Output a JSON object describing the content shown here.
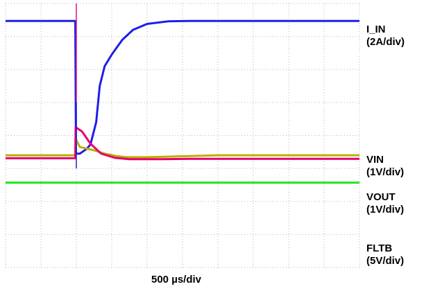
{
  "chart_data": {
    "type": "line",
    "x": {
      "unit": "µs",
      "label": "500 µs/div",
      "range": [
        0,
        5000
      ]
    },
    "grid": true,
    "series": [
      {
        "name": "I_IN",
        "scale": "(2A/div)",
        "color": "#1e1ee6",
        "points": [
          [
            0,
            3.47
          ],
          [
            985,
            3.47
          ],
          [
            995,
            -0.55
          ],
          [
            1050,
            -0.55
          ],
          [
            1150,
            -0.4
          ],
          [
            1200,
            -0.27
          ],
          [
            1280,
            0.4
          ],
          [
            1330,
            1.5
          ],
          [
            1400,
            2.1
          ],
          [
            1500,
            2.45
          ],
          [
            1650,
            2.9
          ],
          [
            1800,
            3.2
          ],
          [
            2000,
            3.38
          ],
          [
            2300,
            3.46
          ],
          [
            2600,
            3.47
          ],
          [
            5000,
            3.47
          ]
        ]
      },
      {
        "name": "VIN",
        "scale": "(1V/div)",
        "color": "#b8b000",
        "points": [
          [
            0,
            -0.6
          ],
          [
            985,
            -0.6
          ],
          [
            992,
            -0.1
          ],
          [
            1050,
            -0.35
          ],
          [
            1150,
            -0.4
          ],
          [
            1250,
            -0.45
          ],
          [
            1400,
            -0.55
          ],
          [
            1550,
            -0.62
          ],
          [
            1700,
            -0.66
          ],
          [
            2000,
            -0.66
          ],
          [
            2500,
            -0.63
          ],
          [
            3000,
            -0.6
          ],
          [
            5000,
            -0.6
          ]
        ]
      },
      {
        "name": "VOUT",
        "scale": "(1V/div)",
        "color": "#e6006e",
        "points": [
          [
            0,
            -0.69
          ],
          [
            985,
            -0.69
          ],
          [
            990,
            0.25
          ],
          [
            1080,
            0.12
          ],
          [
            1200,
            -0.25
          ],
          [
            1350,
            -0.55
          ],
          [
            1550,
            -0.68
          ],
          [
            1750,
            -0.72
          ],
          [
            2200,
            -0.72
          ],
          [
            2600,
            -0.71
          ],
          [
            5000,
            -0.71
          ]
        ]
      },
      {
        "name": "FLTB",
        "scale": "(5V/div)",
        "color": "#1ee61e",
        "points": [
          [
            0,
            -1.43
          ],
          [
            5000,
            -1.43
          ]
        ]
      },
      {
        "name": "",
        "color": "#e01080",
        "points": [
          [
            1000,
            4
          ],
          [
            1000,
            1.0
          ]
        ]
      },
      {
        "name": "",
        "color": "#1e1ee6",
        "points": [
          [
            1000,
            1.0
          ],
          [
            1000,
            -1.0
          ]
        ]
      }
    ]
  }
}
